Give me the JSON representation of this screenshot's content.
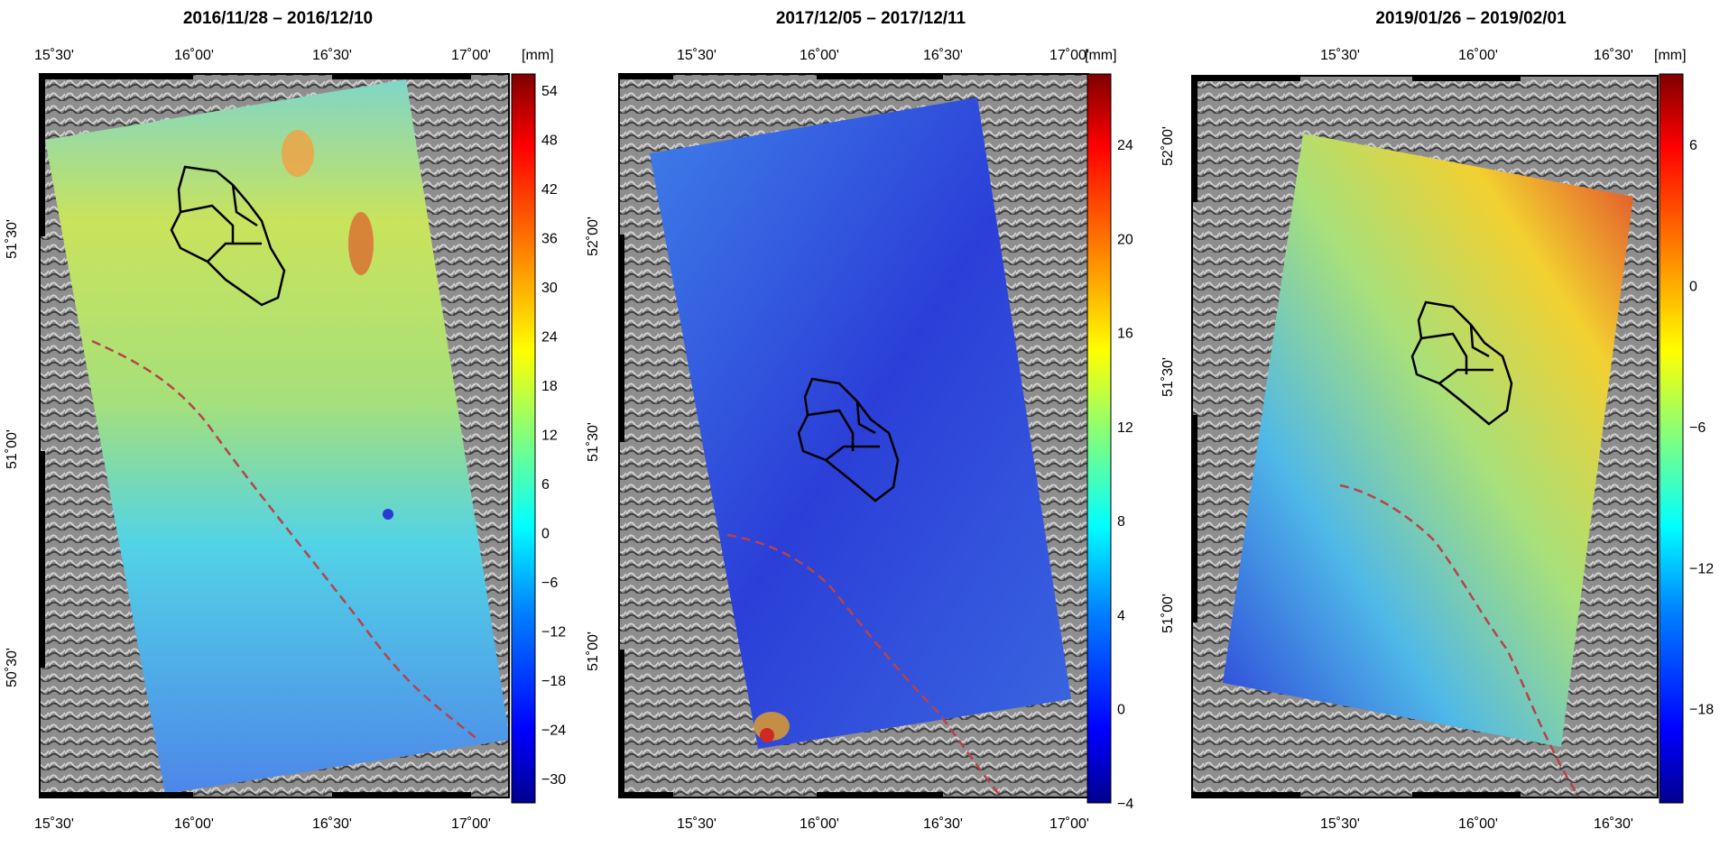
{
  "colors": {
    "frame": "#000000",
    "fault_line": "#b8424a",
    "hillshade_dark": "#3c3c3c",
    "hillshade_light": "#c8c8c8",
    "boundary": "#000000"
  },
  "colorbar_stops": [
    "#00008f",
    "#0000ff",
    "#007fff",
    "#00ffff",
    "#7fff7f",
    "#ffff00",
    "#ff7f00",
    "#ff0000",
    "#7f0000"
  ],
  "panels": [
    {
      "title": "2016/11/28 – 2016/12/10",
      "unit": "[mm]",
      "lon_ticks_top": [
        "15˚30'",
        "16˚00'",
        "16˚30'",
        "17˚00'"
      ],
      "lon_ticks_bottom": [
        "15˚30'",
        "16˚00'",
        "16˚30'",
        "17˚00'"
      ],
      "lat_ticks": [
        "51˚30'",
        "51˚00'",
        "50˚30'"
      ],
      "colorbar_ticks": [
        "54",
        "48",
        "42",
        "36",
        "30",
        "24",
        "18",
        "12",
        "6",
        "0",
        "−6",
        "−12",
        "−18",
        "−24",
        "−30"
      ],
      "colorbar_range": [
        -33,
        56
      ],
      "dominant_color": "#b8dc58",
      "secondary_color": "#5fd8e0"
    },
    {
      "title": "2017/12/05 – 2017/12/11",
      "unit": "[mm]",
      "lon_ticks_top": [
        "15˚30'",
        "16˚00'",
        "16˚30'",
        "17˚00'"
      ],
      "lon_ticks_bottom": [
        "15˚30'",
        "16˚00'",
        "16˚30'",
        "17˚00'"
      ],
      "lat_ticks": [
        "52˚00'",
        "51˚30'",
        "51˚00'"
      ],
      "colorbar_ticks": [
        "24",
        "20",
        "16",
        "12",
        "8",
        "4",
        "0",
        "−4"
      ],
      "colorbar_range": [
        -4,
        27
      ],
      "dominant_color": "#2c46e0",
      "secondary_color": "#3f7fe8"
    },
    {
      "title": "2019/01/26 – 2019/02/01",
      "unit": "[mm]",
      "lon_ticks_top": [
        "15˚30'",
        "16˚00'",
        "16˚30'"
      ],
      "lon_ticks_bottom": [
        "15˚30'",
        "16˚00'",
        "16˚30'"
      ],
      "lat_ticks": [
        "52˚00'",
        "51˚30'",
        "51˚00'"
      ],
      "colorbar_ticks": [
        "6",
        "0",
        "−6",
        "−12",
        "−18"
      ],
      "colorbar_range": [
        -22,
        9
      ],
      "dominant_color": "#a8e07a",
      "secondary_color": "#e86a2c"
    }
  ]
}
